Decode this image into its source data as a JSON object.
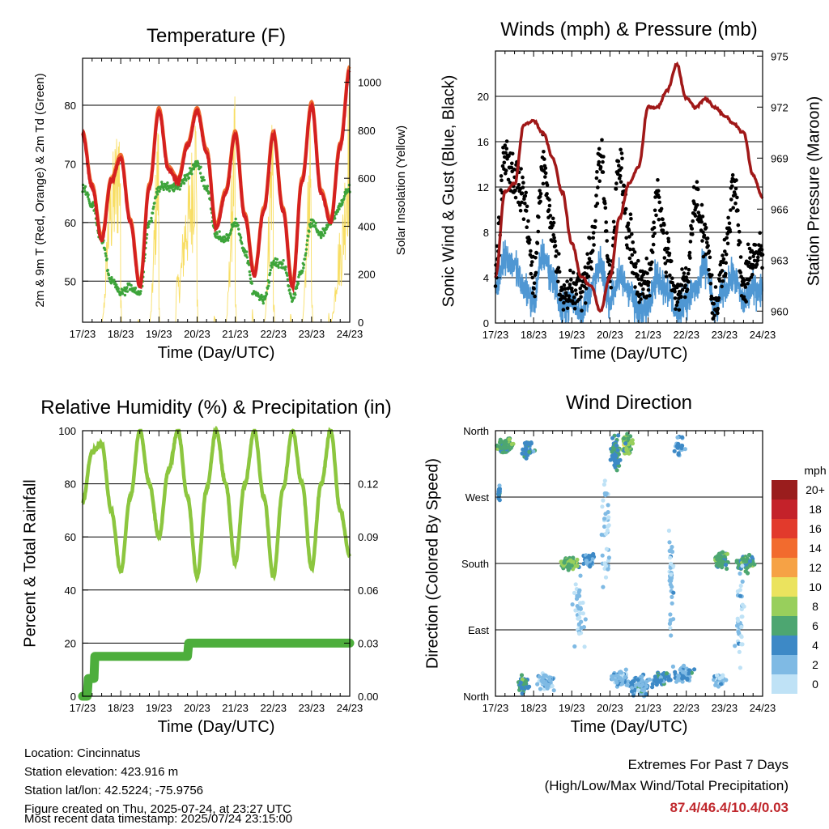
{
  "colors": {
    "temp": "#d42020",
    "temp9": "#f07030",
    "dew": "#3da43a",
    "solar": "#f7d84a",
    "wind": "#4f97d3",
    "gust": "#000000",
    "pressure": "#a01818",
    "rh": "#8cc63f",
    "precip": "#4dae3c"
  },
  "x_ticks": [
    "17/23",
    "18/23",
    "19/23",
    "20/23",
    "21/23",
    "22/23",
    "23/23",
    "24/23"
  ],
  "chart_data": [
    {
      "type": "line",
      "title": "Temperature (F)",
      "xlabel": "Time (Day/UTC)",
      "ylabel": "2m & 9m T (Red, Orange) & 2m Td (Green)",
      "ylabel_right": "Solar Insolation (Yellow)",
      "ylim": [
        43,
        88
      ],
      "yticks": [
        "50",
        "60",
        "70",
        "80"
      ],
      "ylim_right": [
        0,
        1100
      ],
      "yticks_right": [
        "0",
        "200",
        "400",
        "600",
        "800",
        "1000"
      ],
      "grid": true,
      "x": [
        0,
        0.25,
        0.5,
        0.75,
        1.0,
        1.25,
        1.5,
        1.75,
        2.0,
        2.25,
        2.5,
        2.75,
        3.0,
        3.25,
        3.5,
        3.75,
        4.0,
        4.25,
        4.5,
        4.75,
        5.0,
        5.25,
        5.5,
        5.75,
        6.0,
        6.25,
        6.5,
        6.75,
        7.0
      ],
      "series": [
        {
          "name": "2m T",
          "values": [
            75,
            66,
            57,
            67,
            71,
            60,
            49,
            66,
            79,
            69,
            67,
            73,
            79,
            72,
            59,
            65,
            75,
            61,
            51,
            62,
            75,
            62,
            49,
            67,
            80,
            65,
            60,
            73,
            86
          ]
        },
        {
          "name": "2m Td",
          "values": [
            66,
            63,
            57,
            50,
            48,
            49,
            48,
            60,
            66,
            66,
            66,
            68,
            70,
            66,
            58,
            57,
            60,
            55,
            48,
            47,
            53,
            53,
            47,
            52,
            60,
            58,
            60,
            63,
            66
          ]
        },
        {
          "name": "Solar",
          "values": [
            0,
            0,
            0,
            700,
            950,
            300,
            0,
            0,
            900,
            1000,
            200,
            600,
            1000,
            500,
            0,
            0,
            950,
            600,
            0,
            0,
            1000,
            500,
            0,
            0,
            950,
            400,
            0,
            400,
            1000
          ]
        }
      ]
    },
    {
      "type": "scatter",
      "title": "Winds (mph) & Pressure (mb)",
      "xlabel": "Time (Day/UTC)",
      "ylabel": "Sonic Wind & Gust (Blue, Black)",
      "ylabel_right": "Station Pressure (Maroon)",
      "ylim": [
        0,
        24
      ],
      "yticks": [
        "0",
        "4",
        "8",
        "12",
        "16",
        "20"
      ],
      "ylim_right": [
        959.3,
        975.3
      ],
      "yticks_right": [
        "960",
        "963",
        "966",
        "969",
        "972",
        "975"
      ],
      "grid": true,
      "x": [
        0,
        0.25,
        0.5,
        0.75,
        1.0,
        1.25,
        1.5,
        1.75,
        2.0,
        2.25,
        2.5,
        2.75,
        3.0,
        3.25,
        3.5,
        3.75,
        4.0,
        4.25,
        4.5,
        4.75,
        5.0,
        5.25,
        5.5,
        5.75,
        6.0,
        6.25,
        6.5,
        6.75,
        7.0
      ],
      "series": [
        {
          "name": "Sonic Wind",
          "values": [
            3,
            6,
            5,
            3,
            2,
            6,
            4,
            1,
            2,
            1,
            3,
            5,
            2,
            4,
            3,
            1,
            2,
            4,
            3,
            1,
            2,
            3,
            5,
            1,
            3,
            4,
            2,
            3,
            3
          ]
        },
        {
          "name": "Gust",
          "values": [
            5,
            15,
            13,
            11,
            4,
            14,
            8,
            2,
            3,
            3,
            6,
            15,
            4,
            14,
            8,
            3,
            4,
            11,
            6,
            2,
            4,
            11,
            8,
            1,
            6,
            12,
            3,
            6,
            6
          ]
        },
        {
          "name": "Station Pressure",
          "values": [
            962,
            967,
            967.5,
            971,
            971.2,
            970.5,
            969,
            967,
            964,
            962,
            961.5,
            960,
            962,
            965.5,
            967.5,
            968.5,
            972,
            972,
            973,
            974.5,
            972.5,
            972,
            972.5,
            972,
            971.5,
            971,
            970.5,
            968,
            966.7
          ]
        }
      ]
    },
    {
      "type": "line",
      "title": "Relative Humidity (%) & Precipitation (in)",
      "xlabel": "Time (Day/UTC)",
      "ylabel": "Percent & Total Rainfall",
      "ylim": [
        0,
        100
      ],
      "yticks": [
        "0",
        "20",
        "40",
        "60",
        "80",
        "100"
      ],
      "ylim_right": [
        0,
        0.15
      ],
      "yticks_right": [
        "0.00",
        "0.03",
        "0.06",
        "0.09",
        "0.12"
      ],
      "grid": true,
      "x": [
        0,
        0.25,
        0.5,
        0.75,
        1.0,
        1.25,
        1.5,
        1.75,
        2.0,
        2.25,
        2.5,
        2.75,
        3.0,
        3.25,
        3.5,
        3.75,
        4.0,
        4.25,
        4.5,
        4.75,
        5.0,
        5.25,
        5.5,
        5.75,
        6.0,
        6.25,
        6.5,
        6.75,
        7.0
      ],
      "series": [
        {
          "name": "Relative Humidity",
          "values": [
            73,
            92,
            95,
            70,
            47,
            75,
            100,
            80,
            60,
            85,
            100,
            75,
            45,
            78,
            100,
            80,
            50,
            80,
            100,
            75,
            45,
            78,
            100,
            80,
            48,
            80,
            100,
            70,
            53
          ]
        },
        {
          "name": "Total Rainfall",
          "values": [
            0,
            0.01,
            0.0225,
            0.0225,
            0.0225,
            0.0225,
            0.0225,
            0.0225,
            0.0225,
            0.0225,
            0.0225,
            0.0225,
            0.03,
            0.03,
            0.03,
            0.03,
            0.03,
            0.03,
            0.03,
            0.03,
            0.03,
            0.03,
            0.03,
            0.03,
            0.03,
            0.03,
            0.03,
            0.03,
            0.03
          ]
        }
      ]
    },
    {
      "type": "scatter",
      "title": "Wind Direction",
      "xlabel": "Time (Day/UTC)",
      "ylabel": "Direction (Colored By Speed)",
      "yticks": [
        "North",
        "East",
        "South",
        "West",
        "North"
      ],
      "ylim": [
        0,
        360
      ],
      "grid": true,
      "colorbar": {
        "unit": "mph",
        "labels": [
          "20+",
          "18",
          "16",
          "14",
          "12",
          "10",
          "8",
          "6",
          "4",
          "2",
          "0"
        ],
        "colors": [
          "#9a1d1d",
          "#c4222a",
          "#e23a2c",
          "#f26b2e",
          "#f6a245",
          "#ebe35e",
          "#98cf5c",
          "#4da671",
          "#3d89c6",
          "#7fbae4",
          "#bfe2f6"
        ]
      },
      "x": [
        0.1,
        0.4,
        0.8,
        1.3,
        1.5,
        2.2,
        2.6,
        3.1,
        3.5,
        4.0,
        4.5,
        4.9,
        5.2,
        5.6,
        6.2,
        6.6,
        6.9
      ],
      "series": [
        {
          "name": "Direction",
          "values": [
            280,
            335,
            345,
            20,
            15,
            180,
            185,
            335,
            345,
            10,
            8,
            160,
            30,
            200,
            185,
            185,
            205
          ]
        }
      ]
    }
  ],
  "info": {
    "location": "Location: Cincinnatus",
    "elevation": "Station elevation: 423.916 m",
    "latlon": "Station lat/lon: 42.5224; -75.9756",
    "created": "Figure created on Thu, 2025-07-24, at 23:27 UTC",
    "recent": "Most recent data timestamp: 2025/07/24 23:15:00"
  },
  "extremes": {
    "line1": "Extremes For Past 7 Days",
    "line2": "(High/Low/Max Wind/Total Precipitation)",
    "values": "87.4/46.4/10.4/0.03"
  }
}
